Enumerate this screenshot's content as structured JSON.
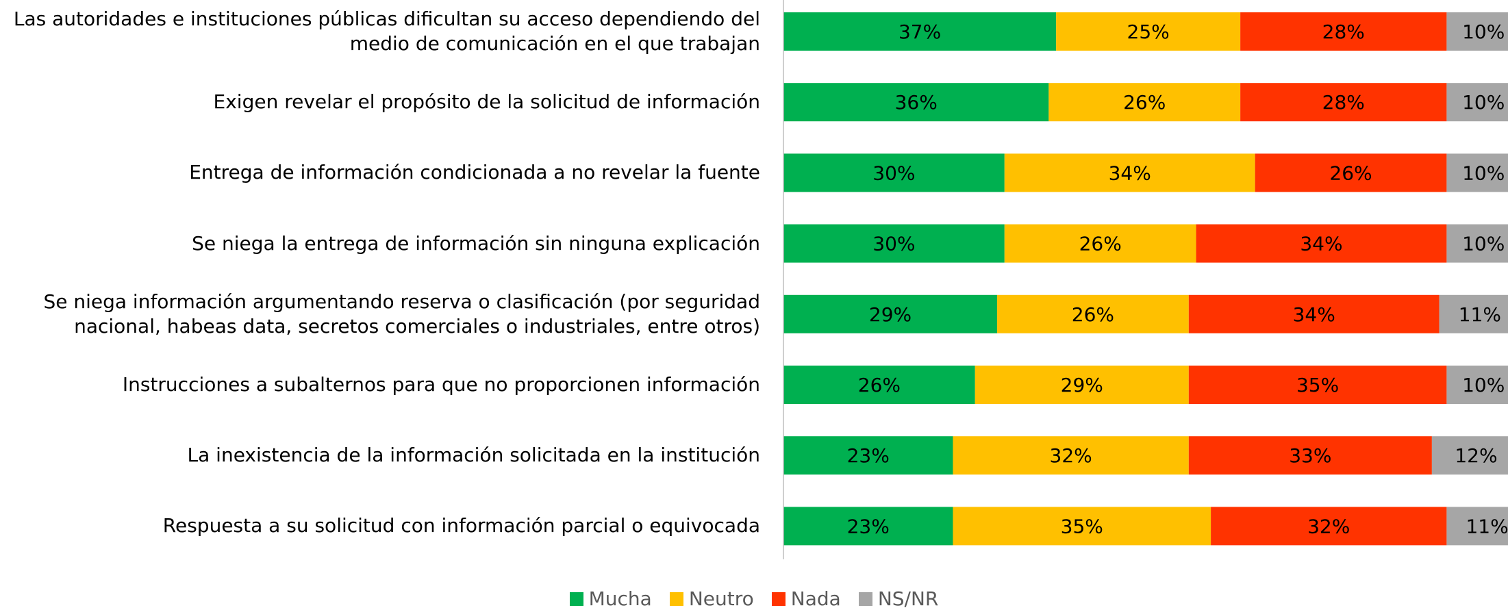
{
  "chart_data": {
    "type": "stacked_barh",
    "categories": [
      "Las autoridades e instituciones públicas dificultan su acceso dependiendo del medio de comunicación en el que trabajan",
      "Exigen revelar el propósito de la solicitud de información",
      "Entrega de información condicionada a no revelar la fuente",
      "Se niega la entrega de información sin ninguna explicación",
      "Se niega información argumentando reserva o clasificación  (por seguridad nacional, habeas data, secretos comerciales o industriales, entre otros)",
      "Instrucciones a subalternos para que no proporcionen información",
      "La inexistencia de la información solicitada en la institución",
      "Respuesta a su solicitud con información parcial o equivocada"
    ],
    "series": [
      {
        "name": "Mucha",
        "color": "#00b050",
        "values": [
          37,
          36,
          30,
          30,
          29,
          26,
          23,
          23
        ],
        "value_labels": [
          "37%",
          "36%",
          "30%",
          "30%",
          "29%",
          "26%",
          "23%",
          "23%"
        ]
      },
      {
        "name": "Neutro",
        "color": "#ffc000",
        "values": [
          25,
          26,
          34,
          26,
          26,
          29,
          32,
          35
        ],
        "value_labels": [
          "25%",
          "26%",
          "34%",
          "26%",
          "26%",
          "29%",
          "32%",
          "35%"
        ]
      },
      {
        "name": "Nada",
        "color": "#ff3300",
        "values": [
          28,
          28,
          26,
          34,
          34,
          35,
          33,
          32
        ],
        "value_labels": [
          "28%",
          "28%",
          "26%",
          "34%",
          "34%",
          "35%",
          "33%",
          "32%"
        ]
      },
      {
        "name": "NS/NR",
        "color": "#a6a6a6",
        "values": [
          10,
          10,
          10,
          10,
          11,
          10,
          12,
          11
        ],
        "value_labels": [
          "10%",
          "10%",
          "10%",
          "10%",
          "11%",
          "10%",
          "12%",
          "11%"
        ]
      }
    ],
    "xlim": [
      0,
      100
    ],
    "legend": "bottom"
  }
}
